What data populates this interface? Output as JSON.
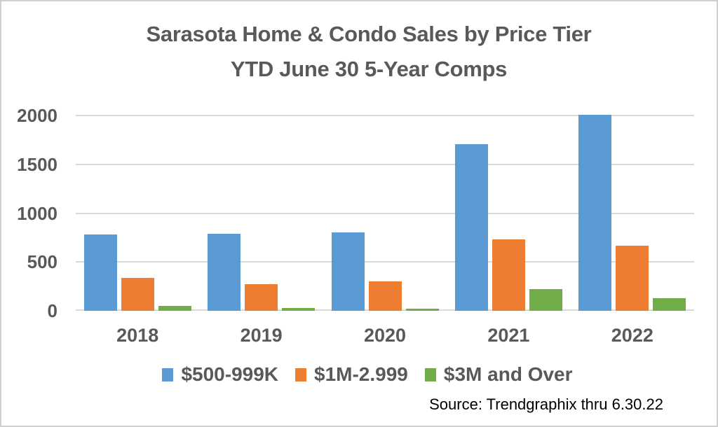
{
  "header": {
    "title_line1": "Sarasota Home & Condo Sales by Price Tier",
    "title_line2": "YTD June 30 5-Year Comps"
  },
  "footer": {
    "source": "Source: Trendgraphix thru 6.30.22"
  },
  "colors": {
    "series_blue": "#5B9BD5",
    "series_orange": "#ED7D31",
    "series_green": "#70AD47",
    "gridline": "#D9D9D9",
    "axis_text": "#595959",
    "source_text": "#000000",
    "frame_border": "#D0D0D0",
    "background": "#FFFFFF"
  },
  "chart_data": {
    "type": "bar",
    "title": "Sarasota Home & Condo Sales by Price Tier YTD June 30 5-Year Comps",
    "categories": [
      "2018",
      "2019",
      "2020",
      "2021",
      "2022"
    ],
    "series": [
      {
        "name": "$500-999K",
        "color": "#5B9BD5",
        "values": [
          780,
          790,
          805,
          1710,
          2005
        ]
      },
      {
        "name": "$1M-2.999",
        "color": "#ED7D31",
        "values": [
          335,
          270,
          305,
          730,
          665
        ]
      },
      {
        "name": "$3M and Over",
        "color": "#70AD47",
        "values": [
          50,
          30,
          25,
          220,
          130
        ]
      }
    ],
    "xlabel": "",
    "ylabel": "",
    "ylim": [
      0,
      2000
    ],
    "yticks": [
      0,
      500,
      1000,
      1500,
      2000
    ],
    "grid": "horizontal",
    "legend_position": "bottom"
  }
}
